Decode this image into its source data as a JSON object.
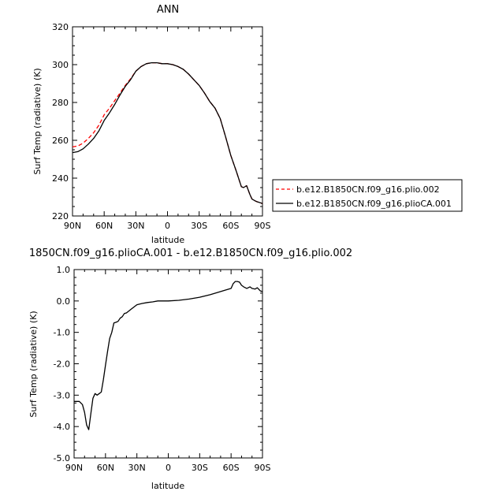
{
  "chart_data": [
    {
      "type": "line",
      "title": "ANN",
      "xlabel": "latitude",
      "ylabel": "Surf Temp (radiative) (K)",
      "xlim": [
        90,
        -90
      ],
      "ylim": [
        220,
        320
      ],
      "xticks": [
        "90N",
        "60N",
        "30N",
        "0",
        "30S",
        "60S",
        "90S"
      ],
      "yticks": [
        "220",
        "240",
        "260",
        "280",
        "300",
        "320"
      ],
      "legend": "right",
      "series": [
        {
          "name": "b.e12.B1850CN.f09_g16.plio.002",
          "color": "#ff0000",
          "dash": "dashed",
          "x": [
            90,
            85,
            80,
            75,
            70,
            65,
            60,
            55,
            50,
            45,
            40,
            35,
            30,
            25,
            20,
            15,
            10,
            5,
            0,
            -5,
            -10,
            -15,
            -20,
            -25,
            -30,
            -35,
            -40,
            -45,
            -50,
            -55,
            -60,
            -65,
            -70,
            -72,
            -75,
            -78,
            -80,
            -83,
            -85,
            -88,
            -90
          ],
          "y": [
            256.5,
            257,
            258.5,
            261,
            264,
            268,
            273.5,
            277,
            281,
            285,
            289,
            292.5,
            296.5,
            299,
            300.5,
            301,
            301,
            300.5,
            300.5,
            300,
            299,
            297.5,
            295,
            292,
            289,
            285,
            280.5,
            277,
            271.5,
            262,
            252,
            244,
            235.5,
            235,
            236,
            231.5,
            229,
            228,
            227.5,
            227,
            226.5
          ]
        },
        {
          "name": "b.e12.B1850CN.f09_g16.plioCA.001",
          "color": "#000000",
          "dash": "solid",
          "x": [
            90,
            85,
            80,
            75,
            70,
            65,
            60,
            55,
            50,
            45,
            40,
            35,
            30,
            25,
            20,
            15,
            10,
            5,
            0,
            -5,
            -10,
            -15,
            -20,
            -25,
            -30,
            -35,
            -40,
            -45,
            -50,
            -55,
            -60,
            -65,
            -70,
            -72,
            -75,
            -78,
            -80,
            -83,
            -85,
            -88,
            -90
          ],
          "y": [
            253.5,
            254,
            255.5,
            258,
            261,
            265,
            270.5,
            274.5,
            279,
            284,
            288.5,
            292,
            296.5,
            299,
            300.5,
            301,
            301,
            300.5,
            300.5,
            300,
            299,
            297.5,
            295,
            292,
            289,
            285,
            280.5,
            277,
            271.5,
            262,
            252,
            244,
            235.5,
            235,
            236,
            231.5,
            229,
            228,
            227.5,
            227,
            226.5
          ]
        }
      ]
    },
    {
      "type": "line",
      "title": "1850CN.f09_g16.plioCA.001 - b.e12.B1850CN.f09_g16.plio.002",
      "xlabel": "latitude",
      "ylabel": "Surf Temp (radiative) (K)",
      "xlim": [
        90,
        -90
      ],
      "ylim": [
        -5.0,
        1.0
      ],
      "xticks": [
        "90N",
        "60N",
        "30N",
        "0",
        "30S",
        "60S",
        "90S"
      ],
      "yticks": [
        "-5.0",
        "-4.0",
        "-3.0",
        "-2.0",
        "-1.0",
        "0.0",
        "1.0"
      ],
      "series": [
        {
          "color": "#000000",
          "x": [
            90,
            85,
            82,
            80,
            78,
            76,
            74,
            72,
            70,
            68,
            66,
            64,
            62,
            60,
            58,
            56,
            54,
            52,
            50,
            48,
            46,
            44,
            42,
            40,
            35,
            30,
            25,
            20,
            15,
            10,
            5,
            0,
            -10,
            -20,
            -30,
            -40,
            -50,
            -55,
            -60,
            -62,
            -64,
            -66,
            -68,
            -70,
            -72,
            -75,
            -78,
            -80,
            -83,
            -85,
            -88,
            -90
          ],
          "y": [
            -3.2,
            -3.2,
            -3.3,
            -3.55,
            -3.95,
            -4.1,
            -3.6,
            -3.1,
            -2.95,
            -3.0,
            -2.95,
            -2.9,
            -2.5,
            -2.05,
            -1.6,
            -1.2,
            -1.0,
            -0.7,
            -0.68,
            -0.65,
            -0.55,
            -0.5,
            -0.4,
            -0.38,
            -0.25,
            -0.12,
            -0.08,
            -0.05,
            -0.03,
            0.0,
            0.0,
            0.0,
            0.02,
            0.06,
            0.12,
            0.2,
            0.3,
            0.35,
            0.4,
            0.55,
            0.62,
            0.62,
            0.6,
            0.5,
            0.45,
            0.4,
            0.45,
            0.4,
            0.38,
            0.42,
            0.32,
            0.3
          ]
        }
      ]
    }
  ]
}
